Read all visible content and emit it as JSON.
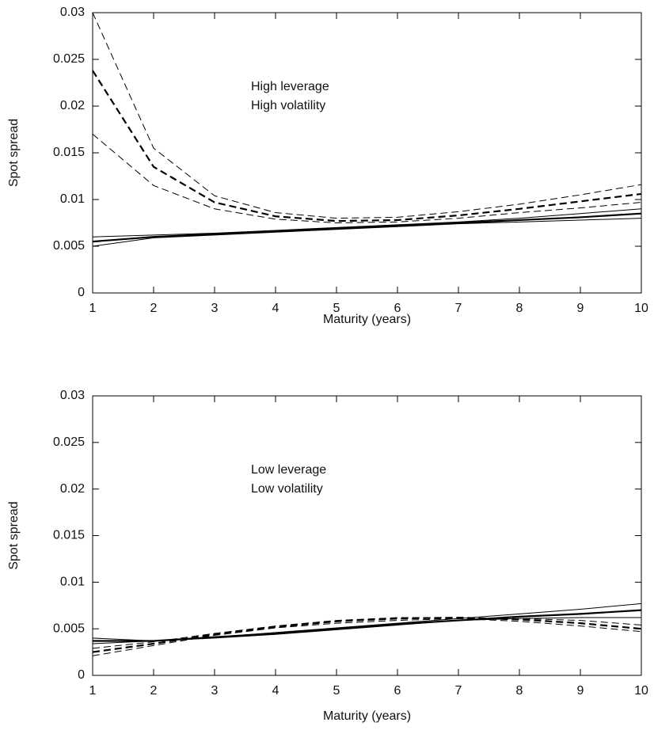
{
  "chart_data": [
    {
      "type": "line",
      "xlabel": "Maturity (years)",
      "ylabel": "Spot spread",
      "annotations": [
        "High leverage",
        "High volatility"
      ],
      "x": [
        1,
        2,
        3,
        4,
        5,
        6,
        7,
        8,
        9,
        10
      ],
      "xlim": [
        1,
        10
      ],
      "xticks": [
        1,
        2,
        3,
        4,
        5,
        6,
        7,
        8,
        9,
        10
      ],
      "ylim": [
        0,
        0.03
      ],
      "yticks": [
        0,
        0.005,
        0.01,
        0.015,
        0.02,
        0.025,
        0.03
      ],
      "series": [
        {
          "color": "#000000",
          "linestyle": "dashed",
          "linewidth": 2.2,
          "values": [
            0.0238,
            0.0135,
            0.0097,
            0.0082,
            0.0077,
            0.0078,
            0.0083,
            0.009,
            0.0098,
            0.0106
          ]
        },
        {
          "color": "#000000",
          "linestyle": "dashed",
          "linewidth": 1,
          "values": [
            0.03,
            0.0155,
            0.0104,
            0.0086,
            0.008,
            0.0081,
            0.0087,
            0.0095,
            0.0105,
            0.0116
          ]
        },
        {
          "color": "#000000",
          "linestyle": "dashed",
          "linewidth": 1,
          "values": [
            0.017,
            0.0115,
            0.009,
            0.0079,
            0.0075,
            0.0076,
            0.008,
            0.0086,
            0.0091,
            0.0097
          ]
        },
        {
          "color": "#000000",
          "linestyle": "solid",
          "linewidth": 2.2,
          "values": [
            0.0055,
            0.006,
            0.0063,
            0.0066,
            0.0069,
            0.0072,
            0.0075,
            0.0078,
            0.0081,
            0.0085
          ]
        },
        {
          "color": "#000000",
          "linestyle": "solid",
          "linewidth": 1,
          "values": [
            0.006,
            0.0062,
            0.0064,
            0.0067,
            0.007,
            0.0073,
            0.0076,
            0.008,
            0.0085,
            0.009
          ]
        },
        {
          "color": "#000000",
          "linestyle": "solid",
          "linewidth": 1,
          "values": [
            0.005,
            0.0059,
            0.0062,
            0.0065,
            0.0068,
            0.0071,
            0.0074,
            0.0076,
            0.0078,
            0.008
          ]
        }
      ]
    },
    {
      "type": "line",
      "xlabel": "Maturity (years)",
      "ylabel": "Spot spread",
      "annotations": [
        "Low leverage",
        "Low volatility"
      ],
      "x": [
        1,
        2,
        3,
        4,
        5,
        6,
        7,
        8,
        9,
        10
      ],
      "xlim": [
        1,
        10
      ],
      "xticks": [
        1,
        2,
        3,
        4,
        5,
        6,
        7,
        8,
        9,
        10
      ],
      "ylim": [
        0,
        0.03
      ],
      "yticks": [
        0,
        0.005,
        0.01,
        0.015,
        0.02,
        0.025,
        0.03
      ],
      "series": [
        {
          "color": "#000000",
          "linestyle": "solid",
          "linewidth": 1,
          "values": [
            0.004,
            0.0037,
            0.0041,
            0.0046,
            0.0051,
            0.0056,
            0.0061,
            0.0066,
            0.0071,
            0.0077
          ]
        },
        {
          "color": "#000000",
          "linestyle": "solid",
          "linewidth": 2.2,
          "values": [
            0.0037,
            0.0037,
            0.0041,
            0.0045,
            0.005,
            0.0055,
            0.0059,
            0.0063,
            0.0066,
            0.007
          ]
        },
        {
          "color": "#000000",
          "linestyle": "solid",
          "linewidth": 1,
          "values": [
            0.0034,
            0.0037,
            0.004,
            0.0044,
            0.0049,
            0.0054,
            0.0059,
            0.0061,
            0.0062,
            0.0062
          ]
        },
        {
          "color": "#000000",
          "linestyle": "dashed",
          "linewidth": 2.2,
          "values": [
            0.0025,
            0.0034,
            0.0044,
            0.0052,
            0.0058,
            0.0061,
            0.0062,
            0.006,
            0.0056,
            0.005
          ]
        },
        {
          "color": "#000000",
          "linestyle": "dashed",
          "linewidth": 1,
          "values": [
            0.0029,
            0.0036,
            0.0045,
            0.0053,
            0.0059,
            0.0062,
            0.0062,
            0.0061,
            0.0059,
            0.0054
          ]
        },
        {
          "color": "#000000",
          "linestyle": "dashed",
          "linewidth": 1,
          "values": [
            0.0021,
            0.0032,
            0.0043,
            0.0051,
            0.0056,
            0.0059,
            0.0061,
            0.0058,
            0.0053,
            0.0047
          ]
        }
      ]
    }
  ]
}
